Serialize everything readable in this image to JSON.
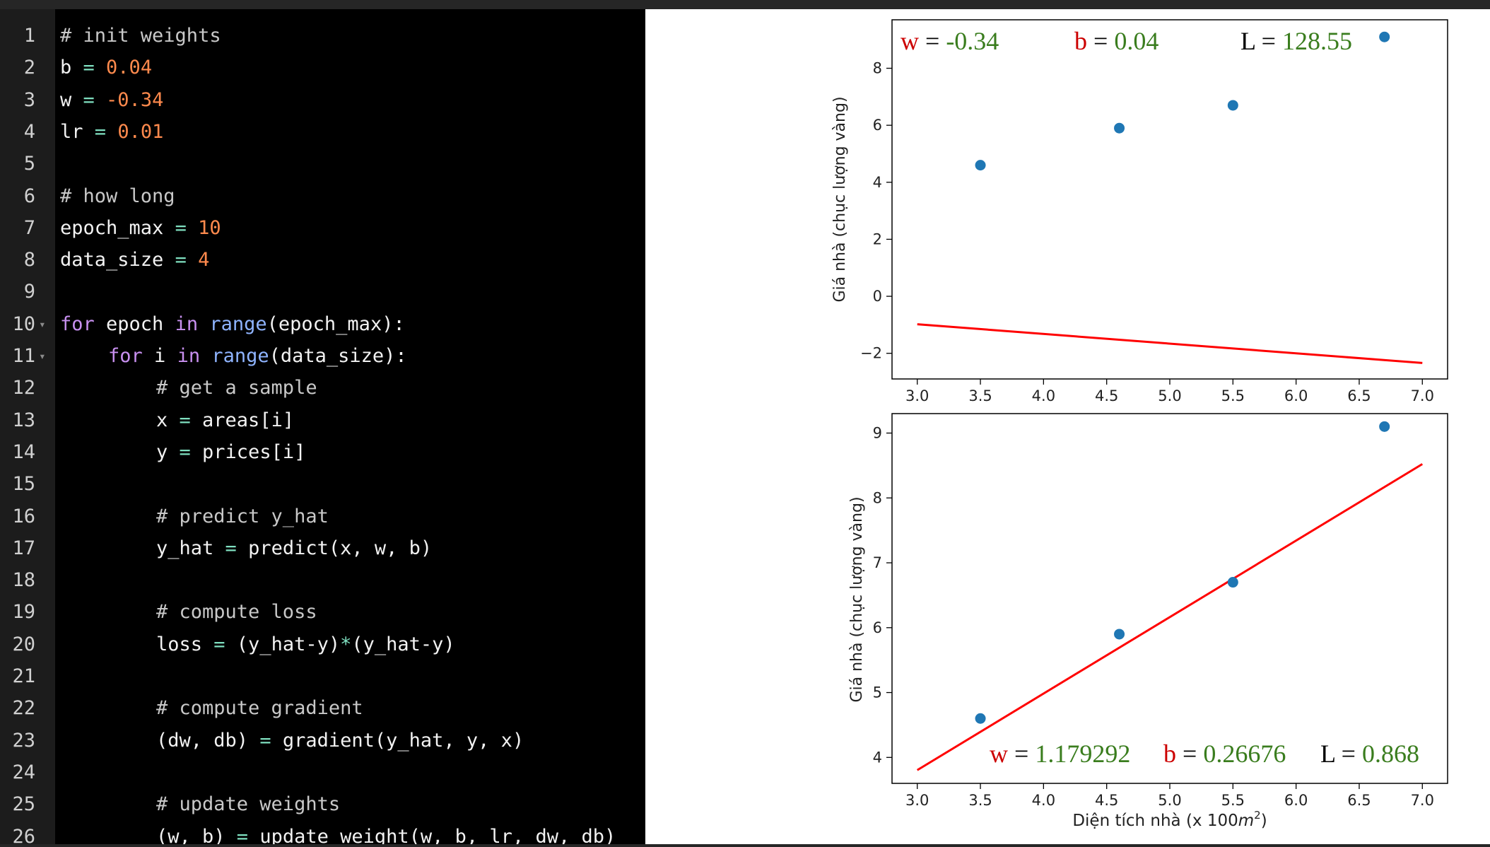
{
  "editor": {
    "lines": [
      {
        "n": "1",
        "indent": 0,
        "tokens": [
          {
            "t": "# init weights",
            "k": "cm"
          }
        ]
      },
      {
        "n": "2",
        "indent": 0,
        "tokens": [
          {
            "t": "b ",
            "k": "tx"
          },
          {
            "t": "=",
            "k": "op"
          },
          {
            "t": " ",
            "k": "tx"
          },
          {
            "t": "0.04",
            "k": "num"
          }
        ]
      },
      {
        "n": "3",
        "indent": 0,
        "tokens": [
          {
            "t": "w ",
            "k": "tx"
          },
          {
            "t": "=",
            "k": "op"
          },
          {
            "t": " ",
            "k": "tx"
          },
          {
            "t": "-0.34",
            "k": "num"
          }
        ]
      },
      {
        "n": "4",
        "indent": 0,
        "tokens": [
          {
            "t": "lr ",
            "k": "tx"
          },
          {
            "t": "=",
            "k": "op"
          },
          {
            "t": " ",
            "k": "tx"
          },
          {
            "t": "0.01",
            "k": "num"
          }
        ]
      },
      {
        "n": "5",
        "indent": 0,
        "tokens": []
      },
      {
        "n": "6",
        "indent": 0,
        "tokens": [
          {
            "t": "# how long",
            "k": "cm"
          }
        ]
      },
      {
        "n": "7",
        "indent": 0,
        "tokens": [
          {
            "t": "epoch_max ",
            "k": "tx"
          },
          {
            "t": "=",
            "k": "op"
          },
          {
            "t": " ",
            "k": "tx"
          },
          {
            "t": "10",
            "k": "num"
          }
        ]
      },
      {
        "n": "8",
        "indent": 0,
        "tokens": [
          {
            "t": "data_size ",
            "k": "tx"
          },
          {
            "t": "=",
            "k": "op"
          },
          {
            "t": " ",
            "k": "tx"
          },
          {
            "t": "4",
            "k": "num"
          }
        ]
      },
      {
        "n": "9",
        "indent": 0,
        "tokens": []
      },
      {
        "n": "10",
        "indent": 0,
        "fold": true,
        "tokens": [
          {
            "t": "for",
            "k": "kw"
          },
          {
            "t": " epoch ",
            "k": "tx"
          },
          {
            "t": "in",
            "k": "kw"
          },
          {
            "t": " ",
            "k": "tx"
          },
          {
            "t": "range",
            "k": "fn"
          },
          {
            "t": "(epoch_max):",
            "k": "tx"
          }
        ]
      },
      {
        "n": "11",
        "indent": 1,
        "fold": true,
        "tokens": [
          {
            "t": "for",
            "k": "kw"
          },
          {
            "t": " i ",
            "k": "tx"
          },
          {
            "t": "in",
            "k": "kw"
          },
          {
            "t": " ",
            "k": "tx"
          },
          {
            "t": "range",
            "k": "fn"
          },
          {
            "t": "(data_size):",
            "k": "tx"
          }
        ]
      },
      {
        "n": "12",
        "indent": 2,
        "tokens": [
          {
            "t": "# get a sample",
            "k": "cm"
          }
        ]
      },
      {
        "n": "13",
        "indent": 2,
        "tokens": [
          {
            "t": "x ",
            "k": "tx"
          },
          {
            "t": "=",
            "k": "op"
          },
          {
            "t": " areas[i]",
            "k": "tx"
          }
        ]
      },
      {
        "n": "14",
        "indent": 2,
        "tokens": [
          {
            "t": "y ",
            "k": "tx"
          },
          {
            "t": "=",
            "k": "op"
          },
          {
            "t": " prices[i]",
            "k": "tx"
          }
        ]
      },
      {
        "n": "15",
        "indent": 0,
        "tokens": []
      },
      {
        "n": "16",
        "indent": 2,
        "tokens": [
          {
            "t": "# predict y_hat",
            "k": "cm"
          }
        ]
      },
      {
        "n": "17",
        "indent": 2,
        "tokens": [
          {
            "t": "y_hat ",
            "k": "tx"
          },
          {
            "t": "=",
            "k": "op"
          },
          {
            "t": " predict(x, w, b)",
            "k": "tx"
          }
        ]
      },
      {
        "n": "18",
        "indent": 0,
        "tokens": []
      },
      {
        "n": "19",
        "indent": 2,
        "tokens": [
          {
            "t": "# compute loss",
            "k": "cm"
          }
        ]
      },
      {
        "n": "20",
        "indent": 2,
        "tokens": [
          {
            "t": "loss ",
            "k": "tx"
          },
          {
            "t": "=",
            "k": "op"
          },
          {
            "t": " (y_hat-y)",
            "k": "tx"
          },
          {
            "t": "*",
            "k": "op"
          },
          {
            "t": "(y_hat-y)",
            "k": "tx"
          }
        ]
      },
      {
        "n": "21",
        "indent": 0,
        "tokens": []
      },
      {
        "n": "22",
        "indent": 2,
        "tokens": [
          {
            "t": "# compute gradient",
            "k": "cm"
          }
        ]
      },
      {
        "n": "23",
        "indent": 2,
        "tokens": [
          {
            "t": "(dw, db) ",
            "k": "tx"
          },
          {
            "t": "=",
            "k": "op"
          },
          {
            "t": " gradient(y_hat, y, x)",
            "k": "tx"
          }
        ]
      },
      {
        "n": "24",
        "indent": 0,
        "tokens": []
      },
      {
        "n": "25",
        "indent": 2,
        "tokens": [
          {
            "t": "# update weights",
            "k": "cm"
          }
        ]
      },
      {
        "n": "26",
        "indent": 2,
        "tokens": [
          {
            "t": "(w, b) ",
            "k": "tx"
          },
          {
            "t": "=",
            "k": "op"
          },
          {
            "t": " update_weight(w, b, lr, dw, db)",
            "k": "tx"
          }
        ]
      }
    ]
  },
  "chart_data": [
    {
      "type": "scatter",
      "title": "",
      "xlabel": "",
      "ylabel": "Giá nhà (chục lượng vàng)",
      "xlim": [
        2.8,
        7.2
      ],
      "ylim": [
        -2.9,
        9.7
      ],
      "xticks": [
        "3.0",
        "3.5",
        "4.0",
        "4.5",
        "5.0",
        "5.5",
        "6.0",
        "6.5",
        "7.0"
      ],
      "yticks": [
        "−2",
        "0",
        "2",
        "4",
        "6",
        "8"
      ],
      "points": [
        [
          3.5,
          4.6
        ],
        [
          4.6,
          5.9
        ],
        [
          5.5,
          6.7
        ],
        [
          6.7,
          9.1
        ]
      ],
      "line": {
        "w": -0.34,
        "b": 0.04,
        "x_range": [
          3.0,
          7.0
        ]
      },
      "annotation": {
        "w_label": "w",
        "w_value": "-0.34",
        "b_label": "b",
        "b_value": "0.04",
        "L_label": "L",
        "L_value": "128.55"
      },
      "grid": false,
      "colors": {
        "points": "#1f77b4",
        "line": "#ff0000",
        "label_red": "#cc0000",
        "value_green": "#3a7d1e",
        "label_black": "#000000"
      }
    },
    {
      "type": "scatter",
      "title": "",
      "xlabel": "Diện tích nhà (x 100",
      "xlabel_unit": "m",
      "xlabel_sup": "2",
      "xlabel_tail": ")",
      "ylabel": "Giá nhà (chục lượng vàng)",
      "xlim": [
        2.8,
        7.2
      ],
      "ylim": [
        3.6,
        9.3
      ],
      "xticks": [
        "3.0",
        "3.5",
        "4.0",
        "4.5",
        "5.0",
        "5.5",
        "6.0",
        "6.5",
        "7.0"
      ],
      "yticks": [
        "4",
        "5",
        "6",
        "7",
        "8",
        "9"
      ],
      "points": [
        [
          3.5,
          4.6
        ],
        [
          4.6,
          5.9
        ],
        [
          5.5,
          6.7
        ],
        [
          6.7,
          9.1
        ]
      ],
      "line": {
        "w": 1.179292,
        "b": 0.26676,
        "x_range": [
          3.0,
          7.0
        ]
      },
      "annotation": {
        "w_label": "w",
        "w_value": "1.179292",
        "b_label": "b",
        "b_value": "0.26676",
        "L_label": "L",
        "L_value": "0.868"
      },
      "grid": false,
      "colors": {
        "points": "#1f77b4",
        "line": "#ff0000",
        "label_red": "#cc0000",
        "value_green": "#3a7d1e",
        "label_black": "#000000"
      }
    }
  ]
}
